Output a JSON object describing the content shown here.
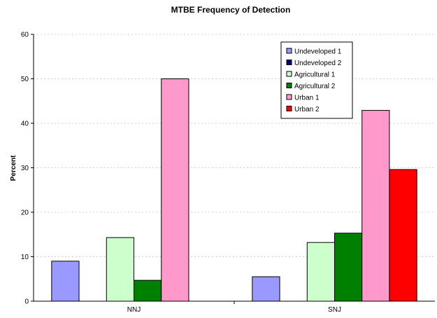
{
  "chart_data": {
    "type": "bar",
    "title": "MTBE Frequency of Detection",
    "xlabel": "",
    "ylabel": "Percent",
    "ylim": [
      0,
      60
    ],
    "yticks": [
      0,
      10,
      20,
      30,
      40,
      50,
      60
    ],
    "grid": true,
    "legend_position": "top-right",
    "categories": [
      "NNJ",
      "SNJ"
    ],
    "series": [
      {
        "name": "Undeveloped 1",
        "color": "#9999ff",
        "values": [
          9,
          5.5
        ]
      },
      {
        "name": "Undeveloped 2",
        "color": "#000080",
        "values": [
          null,
          null
        ]
      },
      {
        "name": "Agricultural 1",
        "color": "#ccffcc",
        "values": [
          14.3,
          13.2
        ]
      },
      {
        "name": "Agricultural 2",
        "color": "#008000",
        "values": [
          4.7,
          15.3
        ]
      },
      {
        "name": "Urban 1",
        "color": "#ff99cc",
        "values": [
          50,
          42.9
        ]
      },
      {
        "name": "Urban 2",
        "color": "#ff0000",
        "values": [
          null,
          29.6
        ]
      }
    ]
  }
}
